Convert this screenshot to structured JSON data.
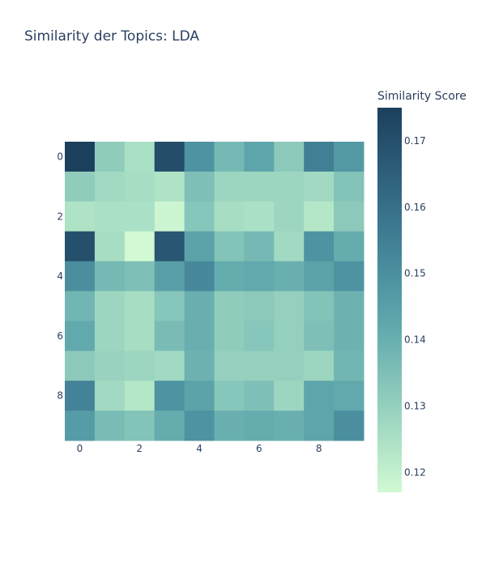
{
  "chart_data": {
    "type": "heatmap",
    "title": "Similarity der Topics: LDA",
    "x": [
      0,
      1,
      2,
      3,
      4,
      5,
      6,
      7,
      8,
      9
    ],
    "y": [
      0,
      1,
      2,
      3,
      4,
      5,
      6,
      7,
      8,
      9
    ],
    "x_tick_labels": [
      "0",
      "2",
      "4",
      "6",
      "8"
    ],
    "y_tick_labels": [
      "0",
      "2",
      "4",
      "6",
      "8"
    ],
    "z": [
      [
        0.175,
        0.131,
        0.125,
        0.171,
        0.149,
        0.137,
        0.143,
        0.132,
        0.155,
        0.147
      ],
      [
        0.131,
        0.127,
        0.126,
        0.124,
        0.135,
        0.128,
        0.128,
        0.128,
        0.127,
        0.134
      ],
      [
        0.124,
        0.125,
        0.125,
        0.118,
        0.133,
        0.126,
        0.125,
        0.128,
        0.123,
        0.132
      ],
      [
        0.17,
        0.126,
        0.117,
        0.168,
        0.144,
        0.134,
        0.137,
        0.127,
        0.149,
        0.141
      ],
      [
        0.15,
        0.137,
        0.135,
        0.145,
        0.152,
        0.141,
        0.142,
        0.14,
        0.144,
        0.149
      ],
      [
        0.138,
        0.128,
        0.126,
        0.133,
        0.14,
        0.131,
        0.132,
        0.13,
        0.134,
        0.139
      ],
      [
        0.142,
        0.128,
        0.126,
        0.136,
        0.14,
        0.131,
        0.133,
        0.13,
        0.135,
        0.139
      ],
      [
        0.132,
        0.129,
        0.128,
        0.127,
        0.139,
        0.13,
        0.13,
        0.13,
        0.128,
        0.138
      ],
      [
        0.154,
        0.127,
        0.123,
        0.149,
        0.144,
        0.133,
        0.135,
        0.128,
        0.143,
        0.142
      ],
      [
        0.146,
        0.136,
        0.134,
        0.141,
        0.149,
        0.14,
        0.141,
        0.14,
        0.143,
        0.15
      ]
    ],
    "colorbar": {
      "title": "Similarity Score",
      "ticks": [
        0.12,
        0.13,
        0.14,
        0.15,
        0.16,
        0.17
      ],
      "tick_labels": [
        "0.12",
        "0.13",
        "0.14",
        "0.15",
        "0.16",
        "0.17"
      ],
      "zmin": 0.117,
      "zmax": 0.175
    },
    "colorscale": [
      "#d1f9d3",
      "#a9dfc4",
      "#85c4b9",
      "#61a9ad",
      "#4b8f9f",
      "#3a748d",
      "#2b5a76",
      "#1b405d"
    ],
    "grid": false,
    "legend_position": "right"
  }
}
